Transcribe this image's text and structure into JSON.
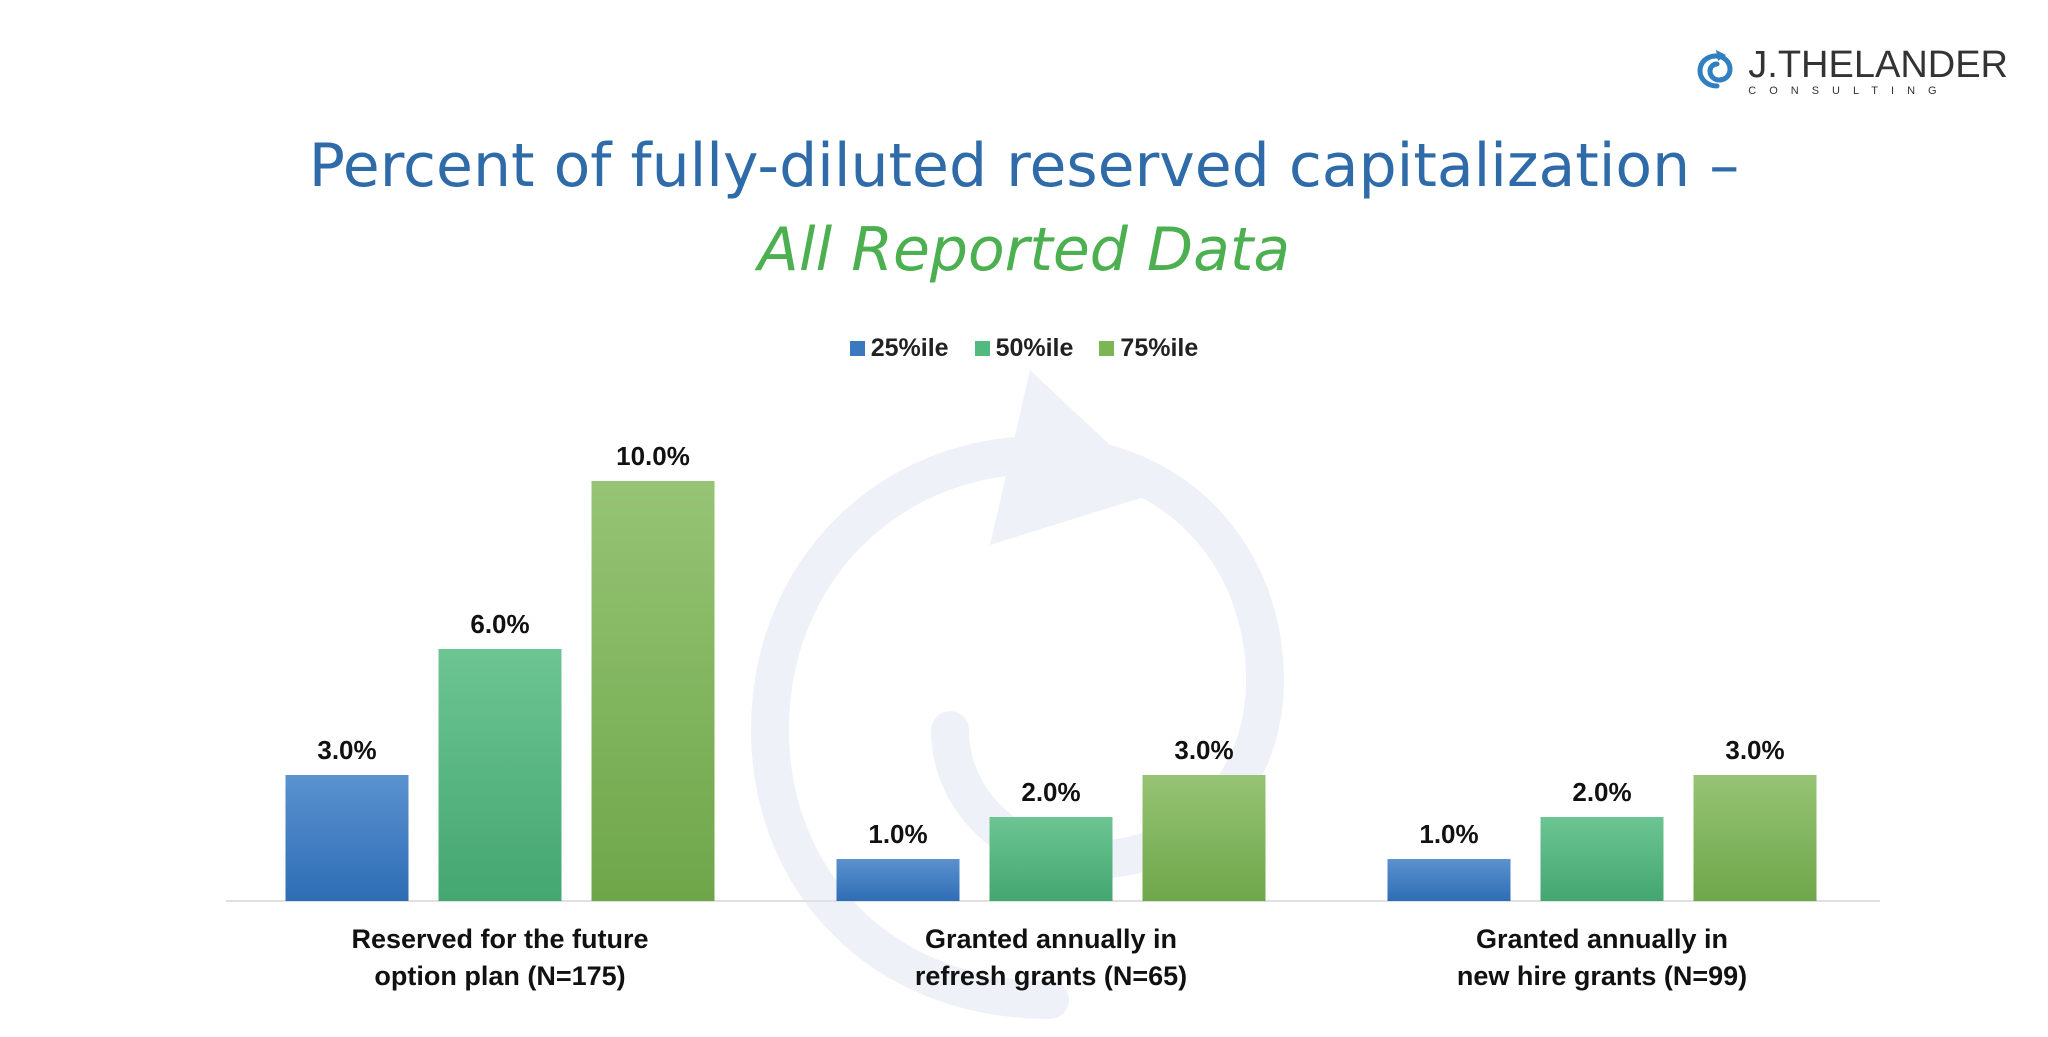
{
  "logo": {
    "main_text": "J.THELANDER",
    "sub_text": "CONSULTING",
    "icon": "spiral-icon"
  },
  "colors": {
    "title": "#2e6ba8",
    "subtitle": "#4caf50",
    "p25": "#3a78c0",
    "p50": "#52b97f",
    "p75": "#7cb556",
    "watermark": "#e8eef6"
  },
  "chart_data": {
    "type": "bar",
    "title": "Percent of fully-diluted reserved capitalization –",
    "subtitle": "All Reported Data",
    "categories": [
      [
        "Reserved for the future",
        "option plan (N=175)"
      ],
      [
        "Granted annually in",
        "refresh grants (N=65)"
      ],
      [
        "Granted annually in",
        "new hire grants (N=99)"
      ]
    ],
    "series": [
      {
        "name": "25%ile",
        "values": [
          3.0,
          1.0,
          1.0
        ],
        "labels": [
          "3.0%",
          "1.0%",
          "1.0%"
        ]
      },
      {
        "name": "50%ile",
        "values": [
          6.0,
          2.0,
          2.0
        ],
        "labels": [
          "6.0%",
          "2.0%",
          "2.0%"
        ]
      },
      {
        "name": "75%ile",
        "values": [
          10.0,
          3.0,
          3.0
        ],
        "labels": [
          "10.0%",
          "3.0%",
          "3.0%"
        ]
      }
    ],
    "unit": "%",
    "ylim": [
      0,
      10
    ],
    "grid": false,
    "legend_position": "top-center"
  }
}
